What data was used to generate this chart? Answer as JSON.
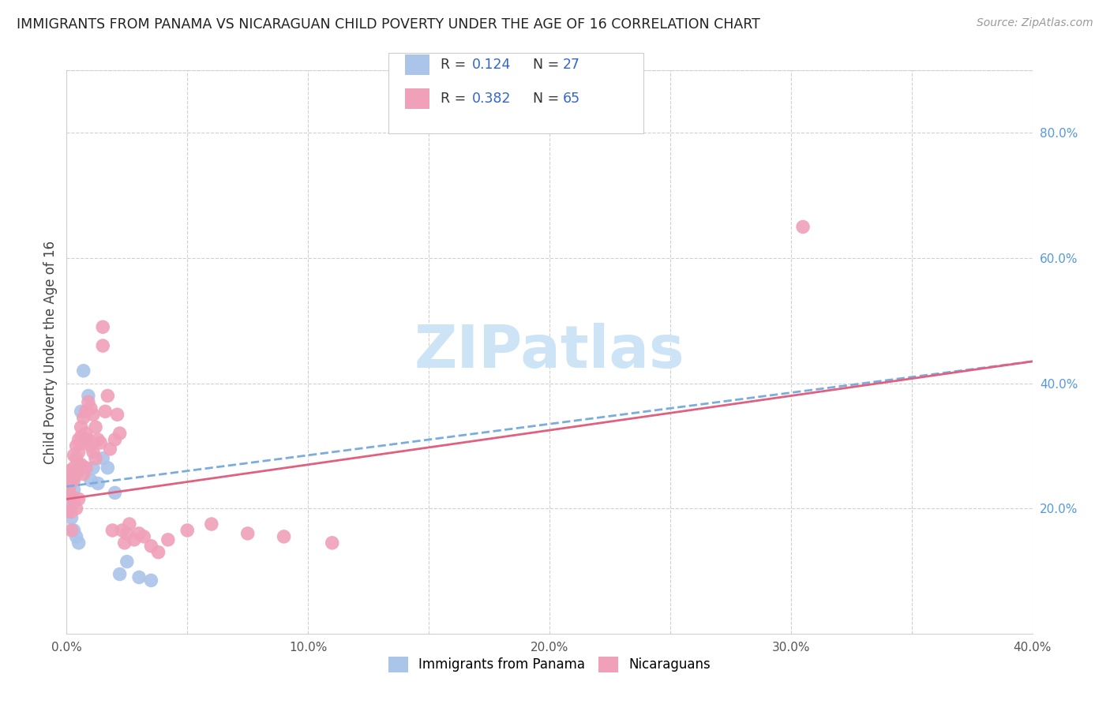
{
  "title": "IMMIGRANTS FROM PANAMA VS NICARAGUAN CHILD POVERTY UNDER THE AGE OF 16 CORRELATION CHART",
  "source": "Source: ZipAtlas.com",
  "ylabel": "Child Poverty Under the Age of 16",
  "xlim": [
    0.0,
    0.4
  ],
  "ylim": [
    0.0,
    0.9
  ],
  "xticks": [
    0.0,
    0.05,
    0.1,
    0.15,
    0.2,
    0.25,
    0.3,
    0.35,
    0.4
  ],
  "xticklabels": [
    "0.0%",
    "",
    "10.0%",
    "",
    "20.0%",
    "",
    "30.0%",
    "",
    "40.0%"
  ],
  "yticks_right": [
    0.2,
    0.4,
    0.6,
    0.8
  ],
  "yticklabels_right": [
    "20.0%",
    "40.0%",
    "60.0%",
    "80.0%"
  ],
  "background_color": "#ffffff",
  "grid_color": "#d0d0d0",
  "series1_label": "Immigrants from Panama",
  "series1_color": "#aac4ea",
  "series1_R": 0.124,
  "series1_N": 27,
  "series1_x": [
    0.001,
    0.001,
    0.001,
    0.002,
    0.002,
    0.002,
    0.003,
    0.003,
    0.003,
    0.004,
    0.004,
    0.005,
    0.005,
    0.006,
    0.007,
    0.008,
    0.009,
    0.01,
    0.011,
    0.013,
    0.015,
    0.017,
    0.02,
    0.022,
    0.025,
    0.03,
    0.035
  ],
  "series1_y": [
    0.245,
    0.225,
    0.2,
    0.24,
    0.22,
    0.185,
    0.25,
    0.23,
    0.165,
    0.26,
    0.155,
    0.27,
    0.145,
    0.355,
    0.42,
    0.31,
    0.38,
    0.245,
    0.265,
    0.24,
    0.28,
    0.265,
    0.225,
    0.095,
    0.115,
    0.09,
    0.085
  ],
  "series2_label": "Nicaraguans",
  "series2_color": "#f0a0b8",
  "series2_R": 0.382,
  "series2_N": 65,
  "series2_x": [
    0.001,
    0.001,
    0.001,
    0.001,
    0.002,
    0.002,
    0.002,
    0.002,
    0.002,
    0.003,
    0.003,
    0.003,
    0.003,
    0.004,
    0.004,
    0.004,
    0.004,
    0.005,
    0.005,
    0.005,
    0.005,
    0.006,
    0.006,
    0.006,
    0.007,
    0.007,
    0.007,
    0.008,
    0.008,
    0.008,
    0.009,
    0.009,
    0.01,
    0.01,
    0.011,
    0.011,
    0.012,
    0.012,
    0.013,
    0.014,
    0.015,
    0.015,
    0.016,
    0.017,
    0.018,
    0.019,
    0.02,
    0.021,
    0.022,
    0.023,
    0.024,
    0.025,
    0.026,
    0.028,
    0.03,
    0.032,
    0.035,
    0.038,
    0.042,
    0.05,
    0.06,
    0.075,
    0.09,
    0.11,
    0.305
  ],
  "series2_y": [
    0.26,
    0.245,
    0.23,
    0.195,
    0.255,
    0.245,
    0.22,
    0.195,
    0.165,
    0.285,
    0.265,
    0.245,
    0.21,
    0.3,
    0.28,
    0.255,
    0.2,
    0.31,
    0.29,
    0.26,
    0.215,
    0.33,
    0.315,
    0.27,
    0.345,
    0.305,
    0.255,
    0.355,
    0.32,
    0.265,
    0.37,
    0.31,
    0.36,
    0.3,
    0.35,
    0.29,
    0.33,
    0.28,
    0.31,
    0.305,
    0.49,
    0.46,
    0.355,
    0.38,
    0.295,
    0.165,
    0.31,
    0.35,
    0.32,
    0.165,
    0.145,
    0.16,
    0.175,
    0.15,
    0.16,
    0.155,
    0.14,
    0.13,
    0.15,
    0.165,
    0.175,
    0.16,
    0.155,
    0.145,
    0.65
  ],
  "trend1_slope": 0.5,
  "trend1_intercept": 0.235,
  "trend2_slope": 0.55,
  "trend2_intercept": 0.215,
  "trend1_color": "#7aadde",
  "trend2_color": "#e06080",
  "watermark": "ZIPatlas",
  "watermark_color": "#cce4f5"
}
